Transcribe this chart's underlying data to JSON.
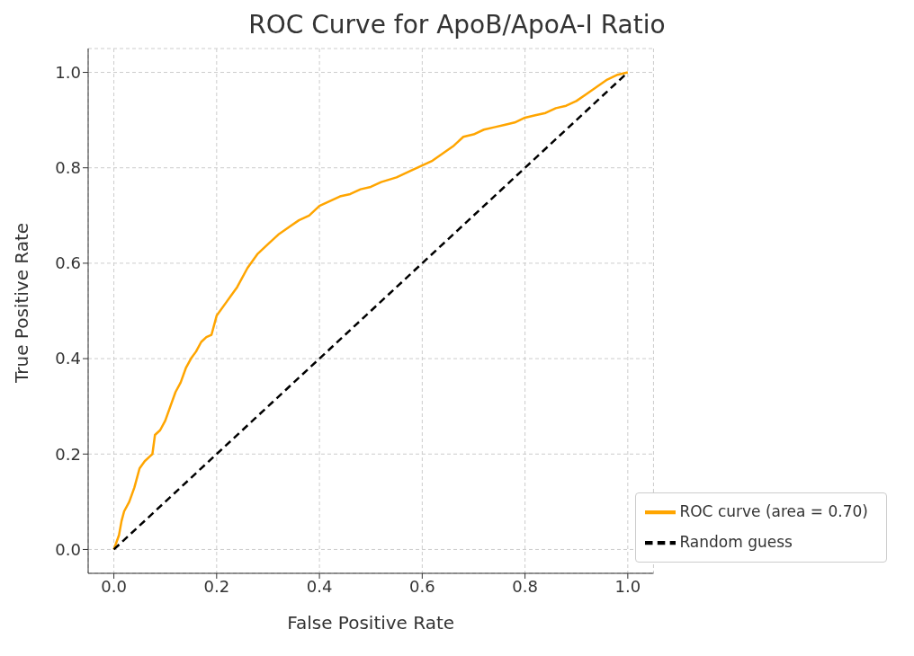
{
  "chart_data": {
    "type": "line",
    "title": "ROC Curve for ApoB/ApoA-I Ratio",
    "xlabel": "False Positive Rate",
    "ylabel": "True Positive Rate",
    "xlim": [
      -0.05,
      1.05
    ],
    "ylim": [
      -0.05,
      1.05
    ],
    "xticks": [
      {
        "value": 0,
        "label": "0.0"
      },
      {
        "value": 0.2,
        "label": "0.2"
      },
      {
        "value": 0.4,
        "label": "0.4"
      },
      {
        "value": 0.6,
        "label": "0.6"
      },
      {
        "value": 0.8,
        "label": "0.8"
      },
      {
        "value": 1,
        "label": "1.0"
      }
    ],
    "yticks": [
      {
        "value": 0,
        "label": "0.0"
      },
      {
        "value": 0.2,
        "label": "0.2"
      },
      {
        "value": 0.4,
        "label": "0.4"
      },
      {
        "value": 0.6,
        "label": "0.6"
      },
      {
        "value": 0.8,
        "label": "0.8"
      },
      {
        "value": 1,
        "label": "1.0"
      }
    ],
    "grid": true,
    "legend": "bottom right",
    "marker": "none",
    "series": [
      {
        "name": "ROC curve (area = 0.70)",
        "color": "#ffa500",
        "line_style": "solid",
        "x": [
          0,
          0.01,
          0.015,
          0.02,
          0.03,
          0.04,
          0.05,
          0.06,
          0.07,
          0.075,
          0.08,
          0.09,
          0.1,
          0.11,
          0.12,
          0.13,
          0.14,
          0.15,
          0.16,
          0.17,
          0.18,
          0.19,
          0.2,
          0.22,
          0.24,
          0.26,
          0.28,
          0.3,
          0.32,
          0.34,
          0.36,
          0.38,
          0.4,
          0.42,
          0.44,
          0.46,
          0.48,
          0.5,
          0.52,
          0.55,
          0.58,
          0.6,
          0.62,
          0.64,
          0.66,
          0.68,
          0.7,
          0.72,
          0.74,
          0.76,
          0.78,
          0.8,
          0.82,
          0.84,
          0.86,
          0.88,
          0.9,
          0.92,
          0.94,
          0.96,
          0.98,
          1
        ],
        "values": [
          0,
          0.03,
          0.06,
          0.08,
          0.1,
          0.13,
          0.17,
          0.185,
          0.195,
          0.2,
          0.24,
          0.25,
          0.27,
          0.3,
          0.33,
          0.35,
          0.38,
          0.4,
          0.415,
          0.435,
          0.445,
          0.45,
          0.49,
          0.52,
          0.55,
          0.59,
          0.62,
          0.64,
          0.66,
          0.675,
          0.69,
          0.7,
          0.72,
          0.73,
          0.74,
          0.745,
          0.755,
          0.76,
          0.77,
          0.78,
          0.795,
          0.805,
          0.815,
          0.83,
          0.845,
          0.865,
          0.87,
          0.88,
          0.885,
          0.89,
          0.895,
          0.905,
          0.91,
          0.915,
          0.925,
          0.93,
          0.94,
          0.955,
          0.97,
          0.985,
          0.995,
          1
        ]
      },
      {
        "name": "Random guess",
        "color": "#000000",
        "line_style": "dashed",
        "x": [
          0,
          1
        ],
        "values": [
          0,
          1
        ]
      }
    ]
  }
}
